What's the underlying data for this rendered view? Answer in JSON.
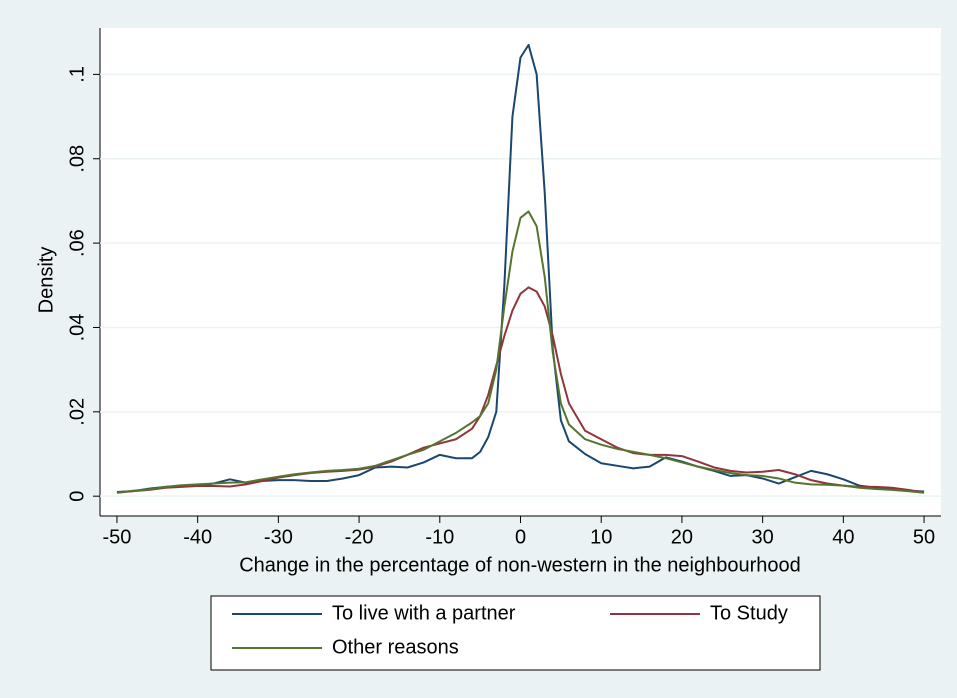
{
  "chart_data": {
    "type": "line",
    "x_label": "Change in the percentage of non-western in the neighbourhood",
    "y_label": "Density",
    "x": [
      -50,
      -48,
      -46,
      -44,
      -42,
      -40,
      -38,
      -36,
      -34,
      -32,
      -30,
      -28,
      -26,
      -24,
      -22,
      -20,
      -18,
      -16,
      -14,
      -12,
      -10,
      -8,
      -6,
      -5,
      -4,
      -3,
      -2,
      -1,
      0,
      1,
      2,
      3,
      4,
      5,
      6,
      8,
      10,
      12,
      14,
      16,
      18,
      20,
      22,
      24,
      26,
      28,
      30,
      32,
      34,
      36,
      38,
      40,
      42,
      44,
      46,
      48,
      50
    ],
    "series": [
      {
        "name": "To live with a partner",
        "color": "#1a476f",
        "values": [
          0.001,
          0.0012,
          0.0018,
          0.0022,
          0.0024,
          0.0025,
          0.003,
          0.004,
          0.0032,
          0.0036,
          0.0038,
          0.0038,
          0.0036,
          0.0036,
          0.0042,
          0.005,
          0.0068,
          0.007,
          0.0068,
          0.008,
          0.0098,
          0.009,
          0.009,
          0.0105,
          0.014,
          0.02,
          0.05,
          0.09,
          0.104,
          0.107,
          0.1,
          0.072,
          0.035,
          0.018,
          0.013,
          0.01,
          0.0078,
          0.0072,
          0.0066,
          0.007,
          0.0092,
          0.0082,
          0.007,
          0.006,
          0.0048,
          0.005,
          0.0042,
          0.003,
          0.0045,
          0.006,
          0.0052,
          0.004,
          0.0025,
          0.002,
          0.0016,
          0.0013,
          0.0011
        ]
      },
      {
        "name": "To Study",
        "color": "#90353b",
        "values": [
          0.0008,
          0.0012,
          0.0015,
          0.002,
          0.0022,
          0.0024,
          0.0024,
          0.0023,
          0.0028,
          0.0036,
          0.0044,
          0.005,
          0.0055,
          0.0058,
          0.006,
          0.0063,
          0.007,
          0.0082,
          0.0098,
          0.0115,
          0.0125,
          0.0135,
          0.016,
          0.019,
          0.024,
          0.031,
          0.038,
          0.044,
          0.048,
          0.0495,
          0.0485,
          0.045,
          0.038,
          0.029,
          0.022,
          0.0155,
          0.0135,
          0.0115,
          0.0102,
          0.0098,
          0.0098,
          0.0095,
          0.0082,
          0.0068,
          0.006,
          0.0056,
          0.0058,
          0.0062,
          0.0052,
          0.0038,
          0.003,
          0.0025,
          0.0022,
          0.0022,
          0.002,
          0.0015,
          0.0009
        ]
      },
      {
        "name": "Other reasons",
        "color": "#55752f",
        "values": [
          0.0008,
          0.0013,
          0.0016,
          0.0022,
          0.0026,
          0.0028,
          0.003,
          0.0032,
          0.0033,
          0.004,
          0.0046,
          0.0052,
          0.0056,
          0.006,
          0.0062,
          0.0065,
          0.0072,
          0.0085,
          0.0098,
          0.011,
          0.013,
          0.015,
          0.0175,
          0.019,
          0.022,
          0.03,
          0.045,
          0.058,
          0.066,
          0.0675,
          0.064,
          0.052,
          0.034,
          0.022,
          0.017,
          0.0135,
          0.0122,
          0.0112,
          0.0105,
          0.0098,
          0.009,
          0.008,
          0.007,
          0.0062,
          0.0055,
          0.005,
          0.0048,
          0.0042,
          0.0032,
          0.0028,
          0.0027,
          0.0025,
          0.002,
          0.0017,
          0.0015,
          0.0012,
          0.0008
        ]
      }
    ],
    "xlim": [
      -52.1,
      52.1
    ],
    "xticks": [
      -50,
      -40,
      -30,
      -20,
      -10,
      0,
      10,
      20,
      30,
      40,
      50
    ],
    "ylim": [
      -0.0047,
      0.111
    ],
    "yticks": [
      0,
      {
        "value": 0.02,
        "label": ".02"
      },
      {
        "value": 0.04,
        "label": ".04"
      },
      {
        "value": 0.06,
        "label": ".06"
      },
      {
        "value": 0.08,
        "label": ".08"
      },
      {
        "value": 0.1,
        "label": ".1"
      }
    ],
    "grid": true
  }
}
